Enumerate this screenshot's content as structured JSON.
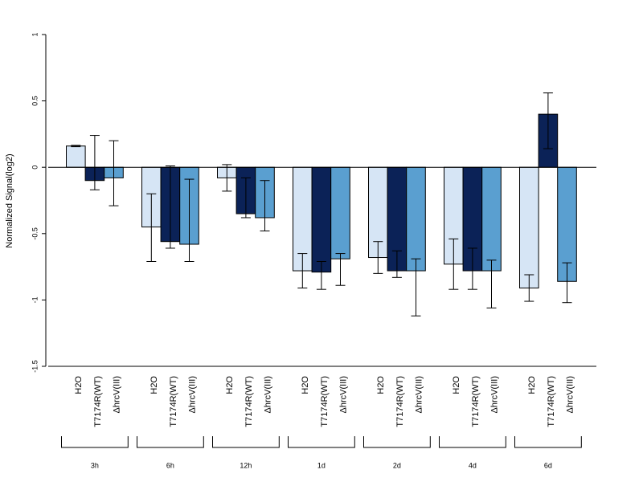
{
  "chart_data": {
    "type": "bar",
    "ylabel": "Normalized Signal(log2)",
    "ylim": [
      -1.5,
      1
    ],
    "yticks": [
      1,
      0.5,
      0,
      -0.5,
      -1,
      -1.5
    ],
    "ytick_labels": [
      "1",
      "0.5",
      "0",
      "-0.5",
      "-1",
      "-1.5"
    ],
    "groups": [
      "3h",
      "6h",
      "12h",
      "1d",
      "2d",
      "4d",
      "6d"
    ],
    "series": [
      {
        "name": "H2O",
        "color": "#d6e5f5",
        "values": [
          0.16,
          -0.45,
          -0.08,
          -0.78,
          -0.68,
          -0.73,
          -0.91
        ],
        "error_low": [
          0.155,
          -0.71,
          -0.18,
          -0.91,
          -0.8,
          -0.92,
          -1.01
        ],
        "error_high": [
          0.165,
          -0.2,
          0.02,
          -0.65,
          -0.56,
          -0.54,
          -0.81
        ]
      },
      {
        "name": "T7174R(WT)",
        "color": "#0b2257",
        "values": [
          -0.1,
          -0.56,
          -0.35,
          -0.79,
          -0.78,
          -0.78,
          0.4
        ],
        "error_low": [
          -0.17,
          -0.61,
          -0.38,
          -0.92,
          -0.83,
          -0.92,
          0.14
        ],
        "error_high": [
          0.24,
          0.01,
          -0.08,
          -0.71,
          -0.63,
          -0.61,
          0.56
        ]
      },
      {
        "name": "ΔhrcV(III)",
        "color": "#5a9fd0",
        "values": [
          -0.08,
          -0.58,
          -0.38,
          -0.69,
          -0.78,
          -0.78,
          -0.86
        ],
        "error_low": [
          -0.29,
          -0.71,
          -0.48,
          -0.89,
          -1.12,
          -1.06,
          -1.02
        ],
        "error_high": [
          0.2,
          -0.09,
          -0.1,
          -0.65,
          -0.69,
          -0.7,
          -0.72
        ]
      }
    ],
    "category_labels": [
      "H2O",
      "T7174R(WT)",
      "ΔhrcV(III)"
    ],
    "grid": false,
    "legend": "none"
  }
}
